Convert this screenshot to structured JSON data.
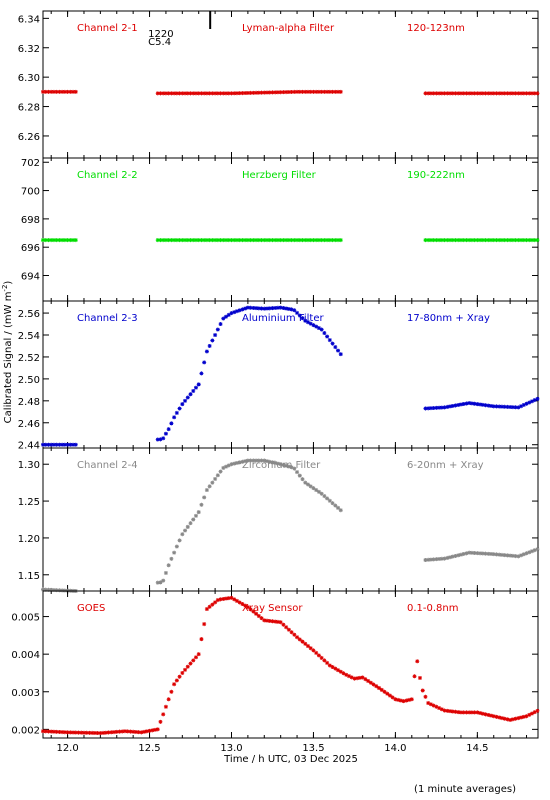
{
  "figure": {
    "ylabel": "Calibrated Signal / (mW m",
    "ylabel_sup": "-2",
    "ylabel_end": ")",
    "xlabel": "Time / h UTC, 03 Dec 2025",
    "footnote": "(1 minute averages)",
    "flare_label": {
      "time": "1220",
      "class": "C5.4"
    },
    "flare_time_h": 12.87
  },
  "chart_data": [
    {
      "type": "scatter",
      "title": "Channel 2-1",
      "subtitle": "Lyman-alpha Filter",
      "band": "120-123nm",
      "color": "#dd0000",
      "xlim": [
        11.85,
        14.87
      ],
      "ylim": [
        6.245,
        6.345
      ],
      "xticks": [
        12.0,
        12.5,
        13.0,
        13.5,
        14.0,
        14.5
      ],
      "ytick_labels": [
        "6.26",
        "6.28",
        "6.30",
        "6.32",
        "6.34"
      ],
      "series": [
        {
          "x": [
            11.85,
            12.05,
            12.55,
            13.0,
            13.4,
            13.68,
            14.18,
            14.5,
            14.87
          ],
          "y": [
            6.29,
            6.29,
            6.289,
            6.289,
            6.29,
            6.29,
            6.289,
            6.289,
            6.289
          ]
        }
      ]
    },
    {
      "type": "scatter",
      "title": "Channel 2-2",
      "subtitle": "Herzberg Filter",
      "band": "190-222nm",
      "color": "#00dd00",
      "xlim": [
        11.85,
        14.87
      ],
      "ylim": [
        692.2,
        702.3
      ],
      "xticks": [
        12.0,
        12.5,
        13.0,
        13.5,
        14.0,
        14.5
      ],
      "ytick_labels": [
        "694",
        "696",
        "698",
        "700",
        "702"
      ],
      "series": [
        {
          "x": [
            11.85,
            12.05,
            12.55,
            13.0,
            13.3,
            13.68,
            14.18,
            14.5,
            14.87
          ],
          "y": [
            696.5,
            696.5,
            696.5,
            696.5,
            696.5,
            696.5,
            696.5,
            696.5,
            696.5
          ]
        }
      ]
    },
    {
      "type": "scatter",
      "title": "Channel 2-3",
      "subtitle": "Aluminium Filter",
      "band": "17-80nm + Xray",
      "color": "#0000cc",
      "xlim": [
        11.85,
        14.87
      ],
      "ylim": [
        2.437,
        2.571
      ],
      "xticks": [
        12.0,
        12.5,
        13.0,
        13.5,
        14.0,
        14.5
      ],
      "ytick_labels": [
        "2.44",
        "2.46",
        "2.48",
        "2.50",
        "2.52",
        "2.54",
        "2.56"
      ],
      "series": [
        {
          "x": [
            11.85,
            12.05,
            12.58,
            12.62,
            12.65,
            12.7,
            12.8,
            12.85,
            12.95,
            13.0,
            13.1,
            13.2,
            13.3,
            13.38,
            13.45,
            13.55,
            13.68,
            14.18,
            14.3,
            14.45,
            14.6,
            14.75,
            14.87
          ],
          "y": [
            2.44,
            2.44,
            2.445,
            2.455,
            2.465,
            2.477,
            2.495,
            2.525,
            2.555,
            2.56,
            2.565,
            2.564,
            2.565,
            2.563,
            2.553,
            2.545,
            2.52,
            2.473,
            2.474,
            2.478,
            2.475,
            2.474,
            2.482
          ]
        }
      ]
    },
    {
      "type": "scatter",
      "title": "Channel 2-4",
      "subtitle": "Zirconium Filter",
      "band": "6-20nm + Xray",
      "color": "#888888",
      "xlim": [
        11.85,
        14.87
      ],
      "ylim": [
        1.128,
        1.322
      ],
      "xticks": [
        12.0,
        12.5,
        13.0,
        13.5,
        14.0,
        14.5
      ],
      "ytick_labels": [
        "1.15",
        "1.20",
        "1.25",
        "1.30"
      ],
      "series": [
        {
          "x": [
            11.85,
            12.05,
            12.58,
            12.62,
            12.7,
            12.8,
            12.85,
            12.95,
            13.0,
            13.1,
            13.2,
            13.3,
            13.38,
            13.45,
            13.55,
            13.68,
            14.18,
            14.3,
            14.45,
            14.6,
            14.75,
            14.87
          ],
          "y": [
            1.13,
            1.128,
            1.14,
            1.165,
            1.205,
            1.235,
            1.265,
            1.295,
            1.3,
            1.305,
            1.305,
            1.3,
            1.295,
            1.275,
            1.26,
            1.235,
            1.17,
            1.172,
            1.18,
            1.178,
            1.175,
            1.185
          ]
        }
      ]
    },
    {
      "type": "scatter",
      "title": "GOES",
      "subtitle": "Xray Sensor",
      "band": "0.1-0.8nm",
      "color": "#dd0000",
      "xlim": [
        11.85,
        14.87
      ],
      "ylim": [
        0.00177,
        0.00568
      ],
      "xticks": [
        12.0,
        12.5,
        13.0,
        13.5,
        14.0,
        14.5
      ],
      "ytick_labels": [
        "0.002",
        "0.003",
        "0.004",
        "0.005"
      ],
      "series": [
        {
          "x": [
            11.85,
            12.0,
            12.2,
            12.35,
            12.45,
            12.55,
            12.6,
            12.65,
            12.7,
            12.8,
            12.85,
            12.92,
            13.0,
            13.1,
            13.2,
            13.3,
            13.4,
            13.5,
            13.6,
            13.7,
            13.75,
            13.8,
            13.9,
            14.0,
            14.05,
            14.1,
            14.13,
            14.16,
            14.2,
            14.3,
            14.4,
            14.5,
            14.6,
            14.7,
            14.8,
            14.87
          ],
          "y": [
            0.00195,
            0.00192,
            0.0019,
            0.00195,
            0.00192,
            0.002,
            0.0026,
            0.0032,
            0.0035,
            0.004,
            0.0052,
            0.00545,
            0.0055,
            0.00525,
            0.0049,
            0.00485,
            0.00445,
            0.0041,
            0.0037,
            0.00345,
            0.00335,
            0.00338,
            0.0031,
            0.0028,
            0.00275,
            0.0028,
            0.0039,
            0.0031,
            0.0027,
            0.0025,
            0.00245,
            0.00245,
            0.00235,
            0.00225,
            0.00235,
            0.0025
          ]
        }
      ]
    }
  ]
}
